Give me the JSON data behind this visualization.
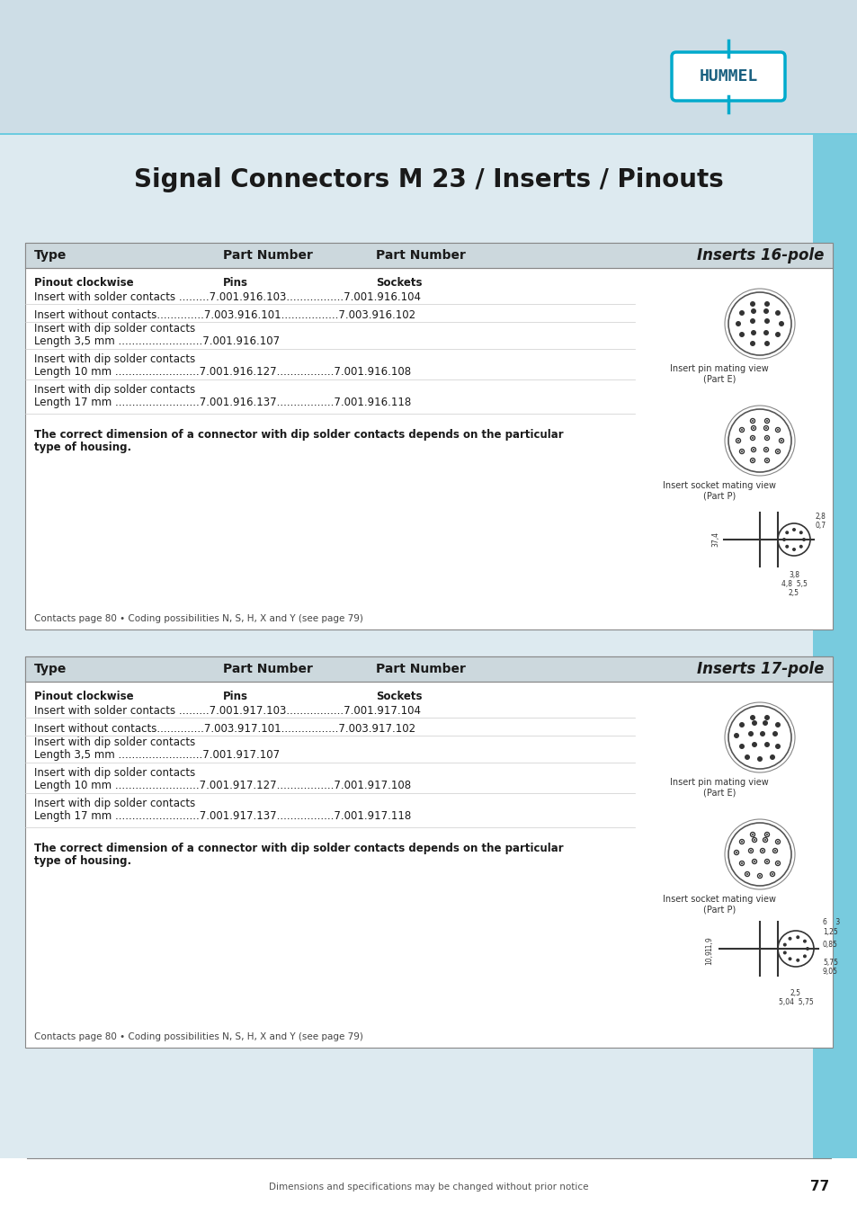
{
  "title": "Signal Connectors M 23 / Inserts / Pinouts",
  "bg_color_top": "#cfdce3",
  "bg_color_gradient_end": "#a8d4e6",
  "white_bg": "#ffffff",
  "header_bg": "#d6e4ec",
  "table_header_bg": "#c5d8e2",
  "border_color": "#aaaaaa",
  "text_dark": "#1a1a1a",
  "text_blue": "#00aacc",
  "accent_cyan": "#00b0d8",
  "page_number": "77",
  "footer_text": "Dimensions and specifications may be changed without prior notice",
  "section1": {
    "header": "Inserts 16-pole",
    "col1": "Type",
    "col2": "Part Number",
    "col3": "Part Number",
    "rows": [
      {
        "type": "Pinout clockwise",
        "pn_label": "Pins",
        "sock_label": "Sockets"
      },
      {
        "type": "Insert with solder contacts .........",
        "pn": "7.001.916.103",
        "sock": "7.001.916.104"
      },
      {
        "type": "Insert without contacts...............",
        "pn": "7.003.916.101",
        "sock": "7.003.916.102"
      },
      {
        "type": "Insert with dip solder contacts\nLength 3,5 mm .........................",
        "pn": "7.001.916.107",
        "sock": ""
      },
      {
        "type": "Insert with dip solder contacts\nLength 10 mm .........................",
        "pn": "7.001.916.127",
        "sock": "7.001.916.108"
      },
      {
        "type": "Insert with dip solder contacts\nLength 17 mm .........................",
        "pn": "7.001.916.137",
        "sock": "7.001.916.118"
      }
    ],
    "bold_note": "The correct dimension of a connector with dip solder contacts depends on the particular\ntype of housing.",
    "footer_note": "Contacts page 80 • Coding possibilities N, S, H, X and Y (see page 79)",
    "pin_label": "Insert pin mating view\n(Part E)",
    "sock_view_label": "Insert socket mating view\n(Part P)"
  },
  "section2": {
    "header": "Inserts 17-pole",
    "col1": "Type",
    "col2": "Part Number",
    "col3": "Part Number",
    "rows": [
      {
        "type": "Pinout clockwise",
        "pn_label": "Pins",
        "sock_label": "Sockets"
      },
      {
        "type": "Insert with solder contacts .........",
        "pn": "7.001.917.103",
        "sock": "7.001.917.104"
      },
      {
        "type": "Insert without contacts...............",
        "pn": "7.003.917.101",
        "sock": "7.003.917.102"
      },
      {
        "type": "Insert with dip solder contacts\nLength 3,5 mm .........................",
        "pn": "7.001.917.107",
        "sock": ""
      },
      {
        "type": "Insert with dip solder contacts\nLength 10 mm .........................",
        "pn": "7.001.917.127",
        "sock": "7.001.917.108"
      },
      {
        "type": "Insert with dip solder contacts\nLength 17 mm .........................",
        "pn": "7.001.917.137",
        "sock": "7.001.917.118"
      }
    ],
    "bold_note": "The correct dimension of a connector with dip solder contacts depends on the particular\ntype of housing.",
    "footer_note": "Contacts page 80 • Coding possibilities N, S, H, X and Y (see page 79)",
    "pin_label": "Insert pin mating view\n(Part E)",
    "sock_view_label": "Insert socket mating view\n(Part P)"
  }
}
